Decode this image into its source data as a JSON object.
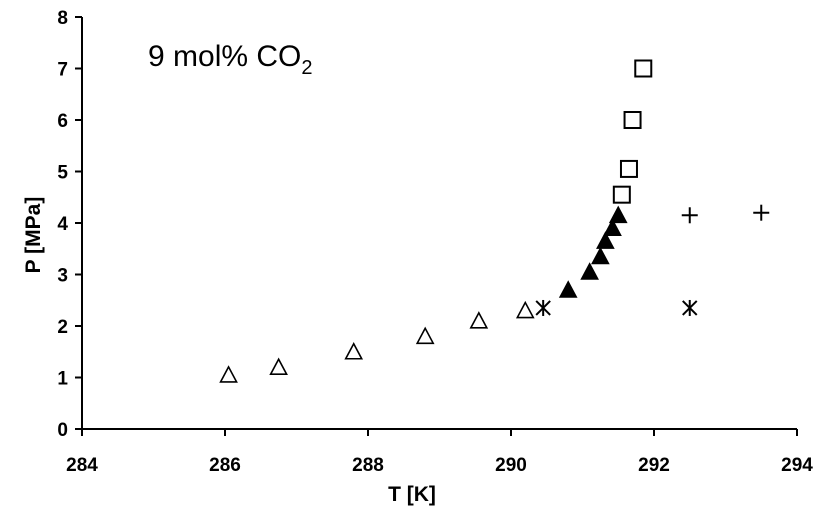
{
  "chart_data": {
    "type": "scatter",
    "title": "9 mol% CO",
    "title_subscript": "2",
    "xlabel": "T [K]",
    "ylabel": "P [MPa]",
    "xlim": [
      284,
      294
    ],
    "ylim": [
      0,
      8
    ],
    "xticks": [
      284,
      286,
      288,
      290,
      292,
      294
    ],
    "yticks": [
      0,
      1,
      2,
      3,
      4,
      5,
      6,
      7,
      8
    ],
    "grid": false,
    "legend": "none",
    "series": [
      {
        "marker": "triangle-open",
        "x": [
          286.05,
          286.75,
          287.8,
          288.8,
          289.55,
          290.2
        ],
        "y": [
          1.05,
          1.2,
          1.5,
          1.8,
          2.1,
          2.3
        ]
      },
      {
        "marker": "triangle-filled",
        "x": [
          290.8,
          291.1,
          291.25,
          291.32,
          291.42,
          291.5
        ],
        "y": [
          2.7,
          3.05,
          3.35,
          3.65,
          3.9,
          4.15
        ]
      },
      {
        "marker": "square-open",
        "x": [
          291.55,
          291.65,
          291.7,
          291.85
        ],
        "y": [
          4.55,
          5.05,
          6.0,
          7.0
        ]
      },
      {
        "marker": "asterisk",
        "x": [
          290.45,
          292.5
        ],
        "y": [
          2.35,
          2.35
        ]
      },
      {
        "marker": "plus",
        "x": [
          292.5,
          293.5
        ],
        "y": [
          4.15,
          4.2
        ]
      }
    ]
  }
}
